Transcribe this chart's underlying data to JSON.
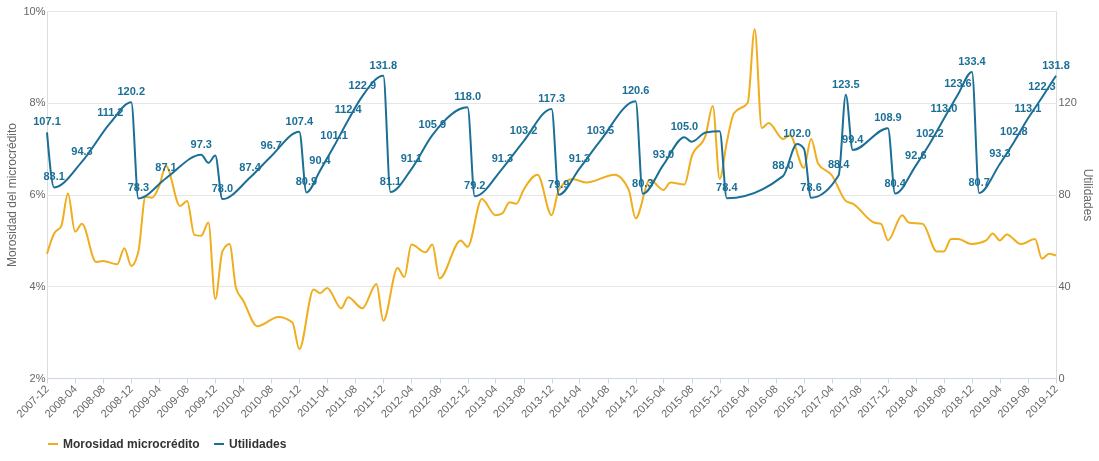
{
  "chart_data": {
    "type": "line",
    "xlim": [
      "2007-12",
      "2019-12"
    ],
    "xticks": [
      "2007-12",
      "2008-04",
      "2008-08",
      "2008-12",
      "2009-04",
      "2009-08",
      "2009-12",
      "2010-04",
      "2010-08",
      "2010-12",
      "2011-04",
      "2011-08",
      "2011-12",
      "2012-04",
      "2012-08",
      "2012-12",
      "2013-04",
      "2013-08",
      "2013-12",
      "2014-04",
      "2014-08",
      "2014-12",
      "2015-04",
      "2015-08",
      "2015-12",
      "2016-04",
      "2016-08",
      "2016-12",
      "2017-04",
      "2017-08",
      "2017-12",
      "2018-04",
      "2018-08",
      "2018-12",
      "2019-04",
      "2019-08",
      "2019-12"
    ],
    "ylabel": "Morosidad del microcrédito",
    "y2label": "Utilidades",
    "ylim": [
      2,
      10
    ],
    "yticks": [
      {
        "value": 2,
        "label": "2%"
      },
      {
        "value": 4,
        "label": "4%"
      },
      {
        "value": 6,
        "label": "6%"
      },
      {
        "value": 8,
        "label": "8%"
      },
      {
        "value": 10,
        "label": "10%"
      }
    ],
    "y2lim": [
      0,
      160
    ],
    "y2ticks": [
      0,
      40,
      80,
      120
    ],
    "grid": "y",
    "legend": "bottom",
    "marker": "none",
    "line_style": "solid",
    "series": [
      {
        "name": "Morosidad microcrédito",
        "color": "#f0ad1e",
        "axis": "y",
        "x": [
          "2007-12",
          "2008-01",
          "2008-02",
          "2008-03",
          "2008-04",
          "2008-05",
          "2008-07",
          "2008-08",
          "2008-10",
          "2008-11",
          "2008-12",
          "2009-01",
          "2009-02",
          "2009-03",
          "2009-04",
          "2009-05",
          "2009-07",
          "2009-08",
          "2009-09",
          "2009-10",
          "2009-11",
          "2009-12",
          "2010-01",
          "2010-02",
          "2010-03",
          "2010-04",
          "2010-06",
          "2010-09",
          "2010-11",
          "2010-12",
          "2011-02",
          "2011-03",
          "2011-04",
          "2011-06",
          "2011-07",
          "2011-09",
          "2011-11",
          "2011-12",
          "2012-02",
          "2012-03",
          "2012-04",
          "2012-06",
          "2012-07",
          "2012-08",
          "2012-11",
          "2012-12",
          "2013-02",
          "2013-04",
          "2013-05",
          "2013-06",
          "2013-07",
          "2013-08",
          "2013-10",
          "2013-12",
          "2014-01",
          "2014-03",
          "2014-05",
          "2014-09",
          "2014-11",
          "2014-12",
          "2015-02",
          "2015-04",
          "2015-05",
          "2015-07",
          "2015-08",
          "2015-10",
          "2015-11",
          "2015-12",
          "2016-01",
          "2016-02",
          "2016-04",
          "2016-05",
          "2016-06",
          "2016-07",
          "2016-09",
          "2016-10",
          "2016-12",
          "2017-01",
          "2017-02",
          "2017-04",
          "2017-06",
          "2017-07",
          "2017-10",
          "2017-11",
          "2017-12",
          "2018-02",
          "2018-03",
          "2018-05",
          "2018-07",
          "2018-08",
          "2018-09",
          "2018-10",
          "2018-12",
          "2019-02",
          "2019-03",
          "2019-04",
          "2019-05",
          "2019-07",
          "2019-09",
          "2019-10",
          "2019-11",
          "2019-12"
        ],
        "values": [
          4.71,
          5.15,
          5.31,
          6.02,
          5.19,
          5.36,
          4.53,
          4.55,
          4.48,
          4.83,
          4.44,
          4.76,
          5.95,
          5.93,
          6.18,
          6.62,
          5.75,
          5.86,
          5.12,
          5.1,
          5.39,
          3.72,
          4.76,
          4.92,
          3.96,
          3.69,
          3.13,
          3.33,
          3.21,
          2.63,
          3.93,
          3.85,
          3.96,
          3.52,
          3.76,
          3.52,
          4.05,
          3.25,
          4.4,
          4.2,
          4.91,
          4.74,
          4.91,
          4.17,
          5.0,
          4.86,
          5.9,
          5.55,
          5.59,
          5.83,
          5.8,
          6.1,
          6.43,
          5.55,
          6.1,
          6.34,
          6.26,
          6.43,
          6.1,
          5.48,
          6.32,
          6.1,
          6.26,
          6.22,
          6.82,
          7.29,
          7.93,
          6.34,
          7.14,
          7.77,
          8.0,
          9.6,
          7.45,
          7.56,
          7.21,
          7.29,
          6.58,
          7.21,
          6.67,
          6.42,
          5.86,
          5.8,
          5.39,
          5.36,
          5.0,
          5.55,
          5.39,
          5.36,
          4.76,
          4.76,
          5.03,
          5.03,
          4.92,
          5.0,
          5.15,
          5.0,
          5.13,
          4.92,
          5.03,
          4.6,
          4.71,
          4.67
        ]
      },
      {
        "name": "Utilidades",
        "color": "#1b6f96",
        "axis": "y2",
        "x": [
          "2007-12",
          "2008-01",
          "2008-05",
          "2008-09",
          "2008-12",
          "2009-01",
          "2009-05",
          "2009-10",
          "2009-11",
          "2009-12",
          "2010-01",
          "2010-05",
          "2010-08",
          "2010-12",
          "2011-01",
          "2011-03",
          "2011-05",
          "2011-07",
          "2011-09",
          "2011-12",
          "2012-01",
          "2012-04",
          "2012-07",
          "2012-12",
          "2013-01",
          "2013-05",
          "2013-08",
          "2013-12",
          "2014-01",
          "2014-04",
          "2014-07",
          "2014-12",
          "2015-01",
          "2015-04",
          "2015-07",
          "2015-08",
          "2015-10",
          "2015-12",
          "2016-01",
          "2016-09",
          "2016-11",
          "2016-12",
          "2017-01",
          "2017-05",
          "2017-06",
          "2017-07",
          "2017-12",
          "2018-01",
          "2018-04",
          "2018-06",
          "2018-08",
          "2018-10",
          "2018-12",
          "2019-01",
          "2019-04",
          "2019-06",
          "2019-08",
          "2019-10",
          "2019-12"
        ],
        "values": [
          107.1,
          83.1,
          94.3,
          111.2,
          120.2,
          78.3,
          87.1,
          97.3,
          93.8,
          97,
          78.0,
          87.4,
          96.7,
          107.4,
          80.9,
          90.4,
          101.1,
          112.4,
          122.9,
          131.8,
          81.1,
          91.1,
          105.9,
          118.0,
          79.2,
          91.3,
          103.2,
          117.3,
          79.9,
          91.3,
          103.5,
          120.6,
          80.3,
          93.0,
          105.0,
          103,
          107,
          107.6,
          78.4,
          88.0,
          102.0,
          100,
          78.6,
          88.4,
          123.5,
          99.4,
          108.9,
          80.4,
          92.6,
          102.2,
          113.0,
          123.6,
          133.4,
          80.7,
          93.3,
          102.8,
          113.1,
          122.3,
          131.8
        ],
        "value_labels": [
          "107.1",
          "83.1",
          "94.3",
          "111.2",
          "120.2",
          "78.3",
          "87.1",
          "97.3",
          null,
          null,
          "78.0",
          "87.4",
          "96.7",
          "107.4",
          "80.9",
          "90.4",
          "101.1",
          "112.4",
          "122.9",
          "131.8",
          "81.1",
          "91.1",
          "105.9",
          "118.0",
          "79.2",
          "91.3",
          "103.2",
          "117.3",
          "79.9",
          "91.3",
          "103.5",
          "120.6",
          "80.3",
          "93.0",
          "105.0",
          null,
          null,
          null,
          "78.4",
          "88.0",
          "102.0",
          null,
          "78.6",
          "88.4",
          "123.5",
          "99.4",
          "108.9",
          "80.4",
          "92.6",
          "102.2",
          "113.0",
          "123.6",
          "133.4",
          "80.7",
          "93.3",
          "102.8",
          "113.1",
          "122.3",
          "131.8"
        ]
      }
    ]
  }
}
